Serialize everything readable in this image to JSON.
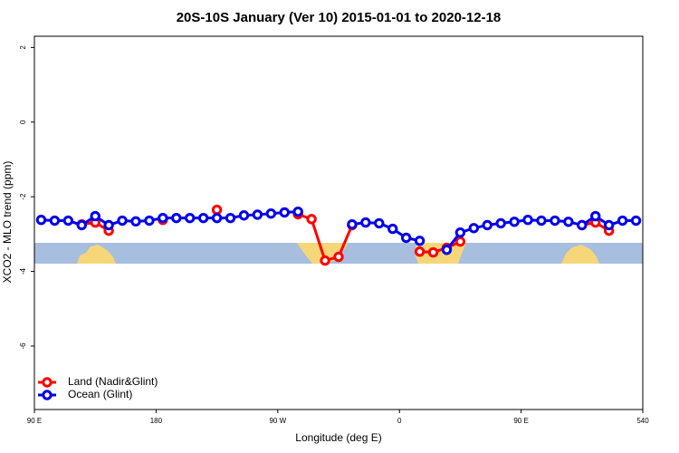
{
  "chart_data": {
    "type": "line",
    "title": "20S-10S January (Ver 10)   2015-01-01 to 2020-12-18",
    "xlabel": "Longitude (deg E)",
    "ylabel": "XCO2 - MLO trend (ppm)",
    "x": [
      95,
      105,
      115,
      125,
      135,
      145,
      155,
      165,
      175,
      185,
      195,
      205,
      215,
      225,
      235,
      245,
      255,
      265,
      275,
      285,
      295,
      305,
      315,
      325,
      335,
      345,
      355,
      365,
      375,
      385,
      395,
      405,
      415,
      425,
      435,
      445,
      455,
      465,
      475,
      485,
      495,
      505,
      515,
      525,
      535
    ],
    "series": [
      {
        "name": "Land (Nadir&Glint)",
        "color": "#ff0000",
        "values": [
          null,
          null,
          null,
          -2.74,
          -2.69,
          -2.91,
          null,
          null,
          null,
          -2.62,
          null,
          null,
          null,
          -2.35,
          null,
          null,
          null,
          null,
          null,
          -2.47,
          -2.6,
          -3.71,
          -3.61,
          -2.76,
          null,
          null,
          null,
          null,
          -3.47,
          -3.49,
          -3.37,
          -3.2,
          null,
          null,
          null,
          null,
          null,
          null,
          null,
          null,
          -2.76,
          -2.69,
          -2.91,
          null,
          null
        ]
      },
      {
        "name": "Ocean (Glint)",
        "color": "#0000ee",
        "values": [
          -2.62,
          -2.64,
          -2.64,
          -2.76,
          -2.52,
          -2.76,
          -2.64,
          -2.66,
          -2.64,
          -2.57,
          -2.57,
          -2.57,
          -2.57,
          -2.57,
          -2.57,
          -2.5,
          -2.48,
          -2.45,
          -2.42,
          -2.4,
          null,
          null,
          null,
          -2.74,
          -2.69,
          -2.71,
          -2.86,
          -3.1,
          -3.18,
          null,
          -3.42,
          -2.96,
          -2.84,
          -2.76,
          -2.71,
          -2.67,
          -2.62,
          -2.64,
          -2.64,
          -2.67,
          -2.76,
          -2.52,
          -2.76,
          -2.64,
          -2.64
        ]
      }
    ],
    "xlim": [
      90,
      540
    ],
    "xticks": [
      {
        "value": 90,
        "label": "90 E"
      },
      180,
      {
        "value": 270,
        "label": "90 W"
      },
      {
        "value": 360,
        "label": "0"
      },
      {
        "value": 450,
        "label": "90 E"
      },
      540
    ],
    "ylim": [
      -7.7,
      2.3
    ],
    "yticks": [
      2,
      0,
      -2,
      -4,
      -6
    ],
    "legend": "lower left",
    "grid": false
  }
}
